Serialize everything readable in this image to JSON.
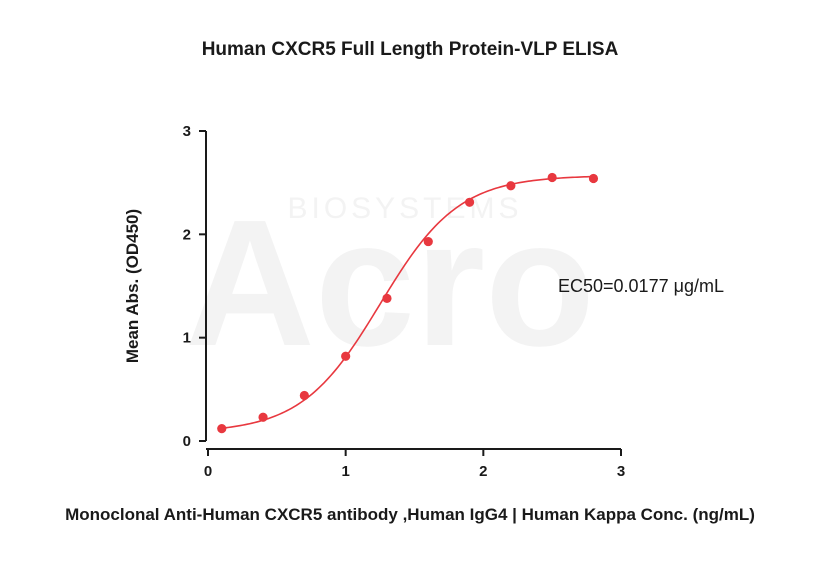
{
  "chart_data": {
    "type": "line",
    "title": "Human CXCR5 Full Length Protein-VLP ELISA",
    "xlabel": "Monoclonal Anti-Human CXCR5 antibody ,Human IgG4 | Human Kappa Conc. (ng/mL)",
    "ylabel": "Mean Abs. (OD450)",
    "xlim": [
      0,
      3
    ],
    "ylim": [
      0,
      3
    ],
    "x_ticks": [
      "0",
      "1",
      "2",
      "3"
    ],
    "y_ticks": [
      "0",
      "1",
      "2",
      "3"
    ],
    "grid": false,
    "series": [
      {
        "color": "#e8383f",
        "points": [
          {
            "x": 0.1,
            "y": 0.12
          },
          {
            "x": 0.4,
            "y": 0.23
          },
          {
            "x": 0.7,
            "y": 0.44
          },
          {
            "x": 1.0,
            "y": 0.82
          },
          {
            "x": 1.3,
            "y": 1.38
          },
          {
            "x": 1.6,
            "y": 1.93
          },
          {
            "x": 1.9,
            "y": 2.31
          },
          {
            "x": 2.2,
            "y": 2.47
          },
          {
            "x": 2.5,
            "y": 2.55
          },
          {
            "x": 2.8,
            "y": 2.54
          }
        ],
        "fit": {
          "bottom": 0.08,
          "top": 2.57,
          "logEC50": 1.25,
          "hill": 1.52
        }
      }
    ],
    "annotation": "EC50=0.0177 μg/mL",
    "watermark": {
      "logo": "Acro",
      "subtext": "BIOSYSTEMS"
    }
  }
}
